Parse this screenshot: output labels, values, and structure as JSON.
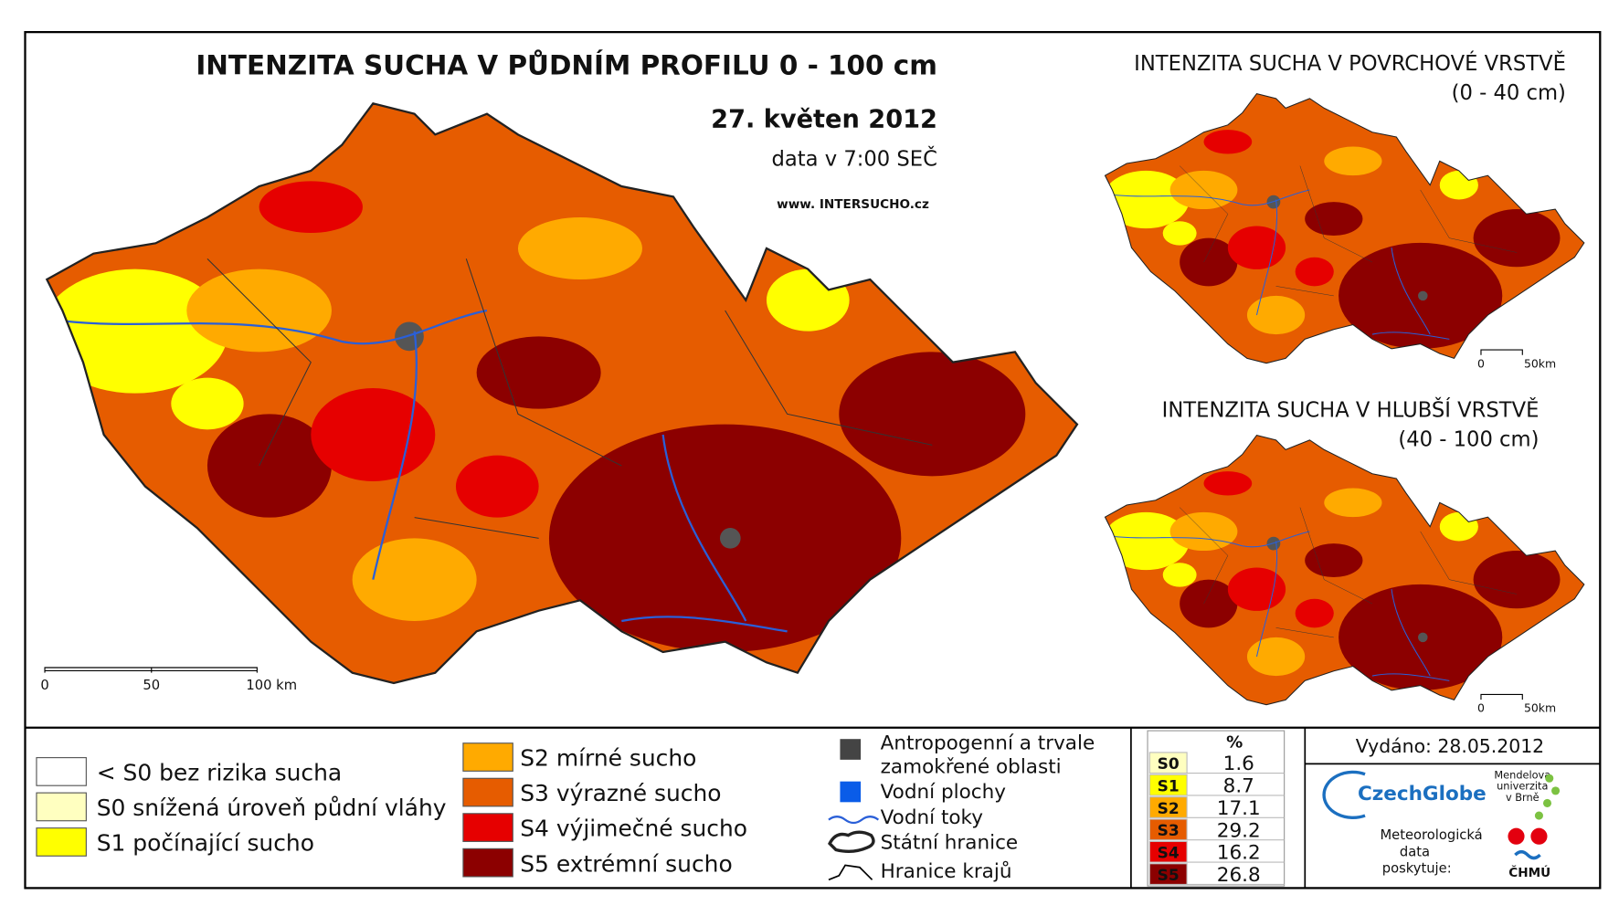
{
  "main_map": {
    "title": "INTENZITA SUCHA V PŮDNÍM PROFILU 0 - 100 cm",
    "date": "27. květen 2012",
    "time": "data v 7:00 SEČ",
    "website": "www. INTERSUCHO.cz",
    "scale": [
      "0",
      "50",
      "100 km"
    ]
  },
  "surface_map": {
    "title": "INTENZITA SUCHA V POVRCHOVÉ VRSTVĚ",
    "subtitle": "(0 - 40 cm)",
    "scale": [
      "0",
      "50km"
    ]
  },
  "deep_map": {
    "title": "INTENZITA SUCHA V HLUBŠÍ VRSTVĚ",
    "subtitle": "(40 - 100 cm)",
    "scale": [
      "0",
      "50km"
    ]
  },
  "legend": {
    "classes": [
      {
        "label": "< S0 bez rizika sucha",
        "color": "#ffffff"
      },
      {
        "label": "S0 snížená úroveň půdní vláhy",
        "color": "#ffffc0"
      },
      {
        "label": "S1 počínající sucho",
        "color": "#ffff00"
      },
      {
        "label": "S2 mírné sucho",
        "color": "#ffaa00"
      },
      {
        "label": "S3 výrazné sucho",
        "color": "#e65c00"
      },
      {
        "label": "S4 výjimečné sucho",
        "color": "#e60000"
      },
      {
        "label": "S5 extrémní sucho",
        "color": "#8c0000"
      }
    ],
    "features": [
      "Antropogenní a trvale zamokřené oblasti",
      "Vodní plochy",
      "Vodní toky",
      "Státní hranice",
      "Hranice krajů"
    ]
  },
  "stats": {
    "header": "%",
    "rows": [
      {
        "class": "S0",
        "percent": 1.6,
        "color": "#ffffc0"
      },
      {
        "class": "S1",
        "percent": 8.7,
        "color": "#ffff00"
      },
      {
        "class": "S2",
        "percent": 17.1,
        "color": "#ffaa00"
      },
      {
        "class": "S3",
        "percent": 29.2,
        "color": "#e65c00"
      },
      {
        "class": "S4",
        "percent": 16.2,
        "color": "#e60000"
      },
      {
        "class": "S5",
        "percent": 26.8,
        "color": "#8c0000"
      }
    ]
  },
  "issued": "Vydáno: 28.05.2012",
  "logos": {
    "czechglobe": "CzechGlobe",
    "mendelu": [
      "Mendelova",
      "univerzita",
      "v Brně"
    ],
    "provider": [
      "Meteorologická",
      "data",
      "poskytuje:"
    ],
    "chmu": "ČHMÚ"
  }
}
